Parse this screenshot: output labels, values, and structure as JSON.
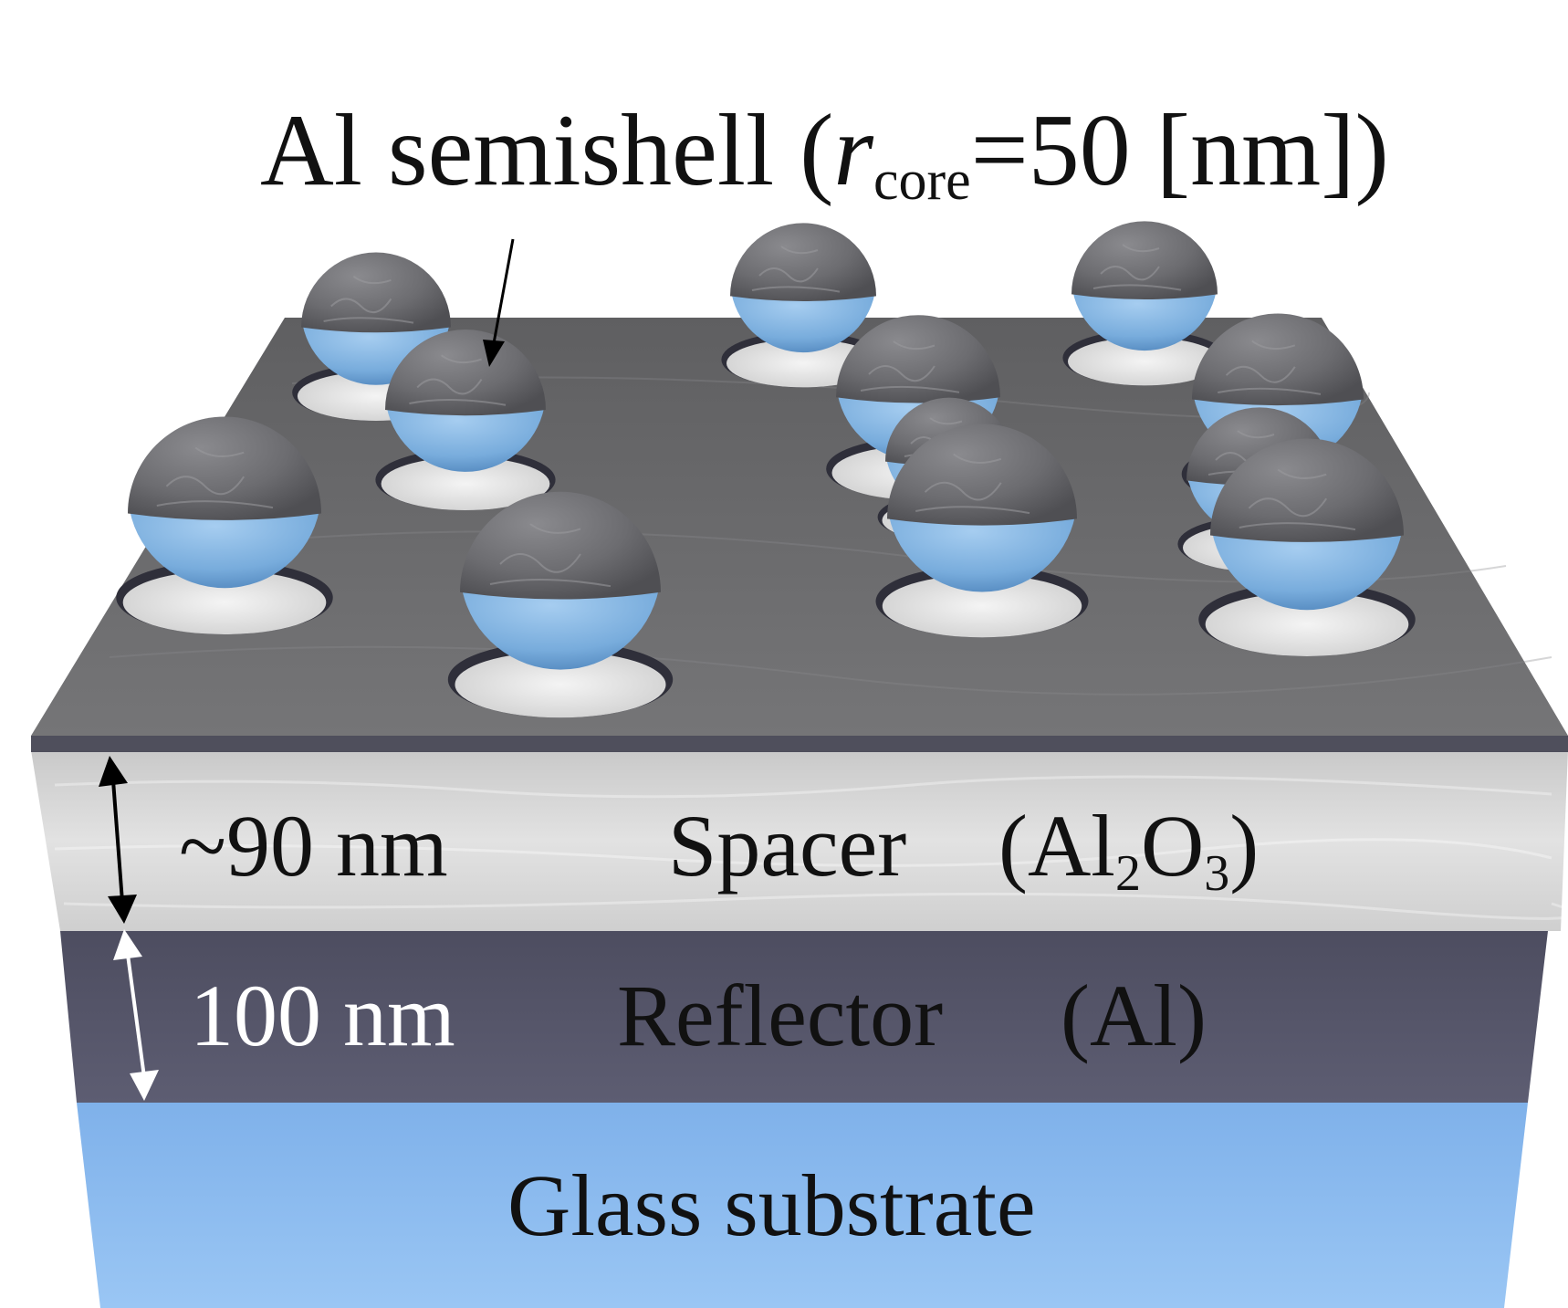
{
  "title": {
    "prefix": "Al semishell  (",
    "r_symbol": "r",
    "r_subscript": "core",
    "suffix": "=50 [nm])"
  },
  "layers": {
    "spacer": {
      "name": "Spacer",
      "formula_open": "(Al",
      "formula_sub1": "2",
      "formula_mid": "O",
      "formula_sub2": "3",
      "formula_close": ")",
      "thickness": "~90 nm"
    },
    "reflector": {
      "name": "Reflector",
      "material": "(Al)",
      "thickness": "100 nm"
    },
    "substrate": {
      "name": "Glass substrate"
    }
  },
  "colors": {
    "shell": "#6f6f73",
    "core": "#7fb2e0",
    "top_surface": "#6b6b6d",
    "spacer": "#d6d6d6",
    "reflector": "#55556a",
    "glass": "#8fbdf0"
  },
  "particle_count": 12
}
